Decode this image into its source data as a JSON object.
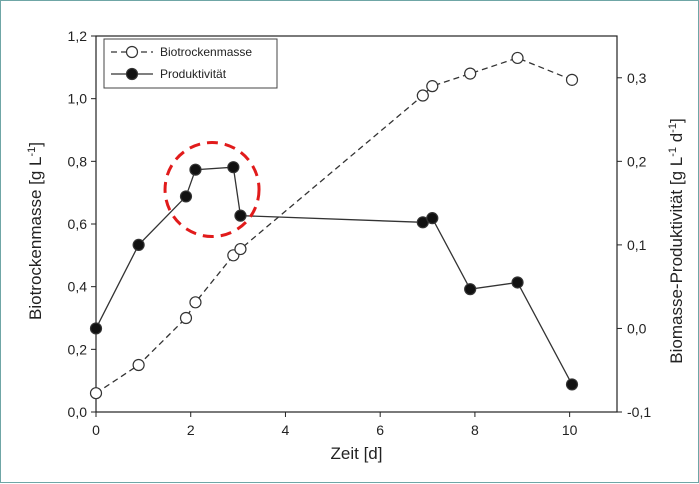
{
  "chart_data": {
    "type": "line",
    "xlabel": "Zeit [d]",
    "ylabel_left": "Biotrockenmasse [g L-1]",
    "ylabel_right": "Biomasse-Produktivität [g L-1 d-1]",
    "xlim": [
      0,
      11
    ],
    "ylim_left": [
      0.0,
      1.2
    ],
    "ylim_right": [
      -0.1,
      0.35
    ],
    "x_ticks": [
      "0",
      "2",
      "4",
      "6",
      "8",
      "10"
    ],
    "y_ticks_left": [
      "0,0",
      "0,2",
      "0,4",
      "0,6",
      "0,8",
      "1,0",
      "1,2"
    ],
    "y_ticks_right": [
      "-0,1",
      "0,0",
      "0,1",
      "0,2",
      "0,3"
    ],
    "legend_position": "top-left",
    "grid": false,
    "series": [
      {
        "name": "Biotrockenmasse",
        "axis": "left",
        "marker": "open-circle",
        "line": "dashed",
        "x": [
          0.0,
          0.9,
          1.9,
          2.1,
          2.9,
          3.05,
          6.9,
          7.1,
          7.9,
          8.9,
          10.05
        ],
        "y": [
          0.06,
          0.15,
          0.3,
          0.35,
          0.5,
          0.52,
          1.01,
          1.04,
          1.08,
          1.13,
          1.06
        ]
      },
      {
        "name": "Produktivität",
        "axis": "right",
        "marker": "filled-circle",
        "line": "solid",
        "x": [
          0.0,
          0.9,
          1.9,
          2.1,
          2.9,
          3.05,
          6.9,
          7.1,
          7.9,
          8.9,
          10.05
        ],
        "y": [
          0.0,
          0.1,
          0.158,
          0.19,
          0.193,
          0.135,
          0.127,
          0.132,
          0.047,
          0.055,
          -0.067
        ]
      }
    ],
    "highlight": {
      "shape": "dashed-circle",
      "color": "#e11b1b",
      "x": 2.45,
      "y_left": 0.71
    }
  }
}
